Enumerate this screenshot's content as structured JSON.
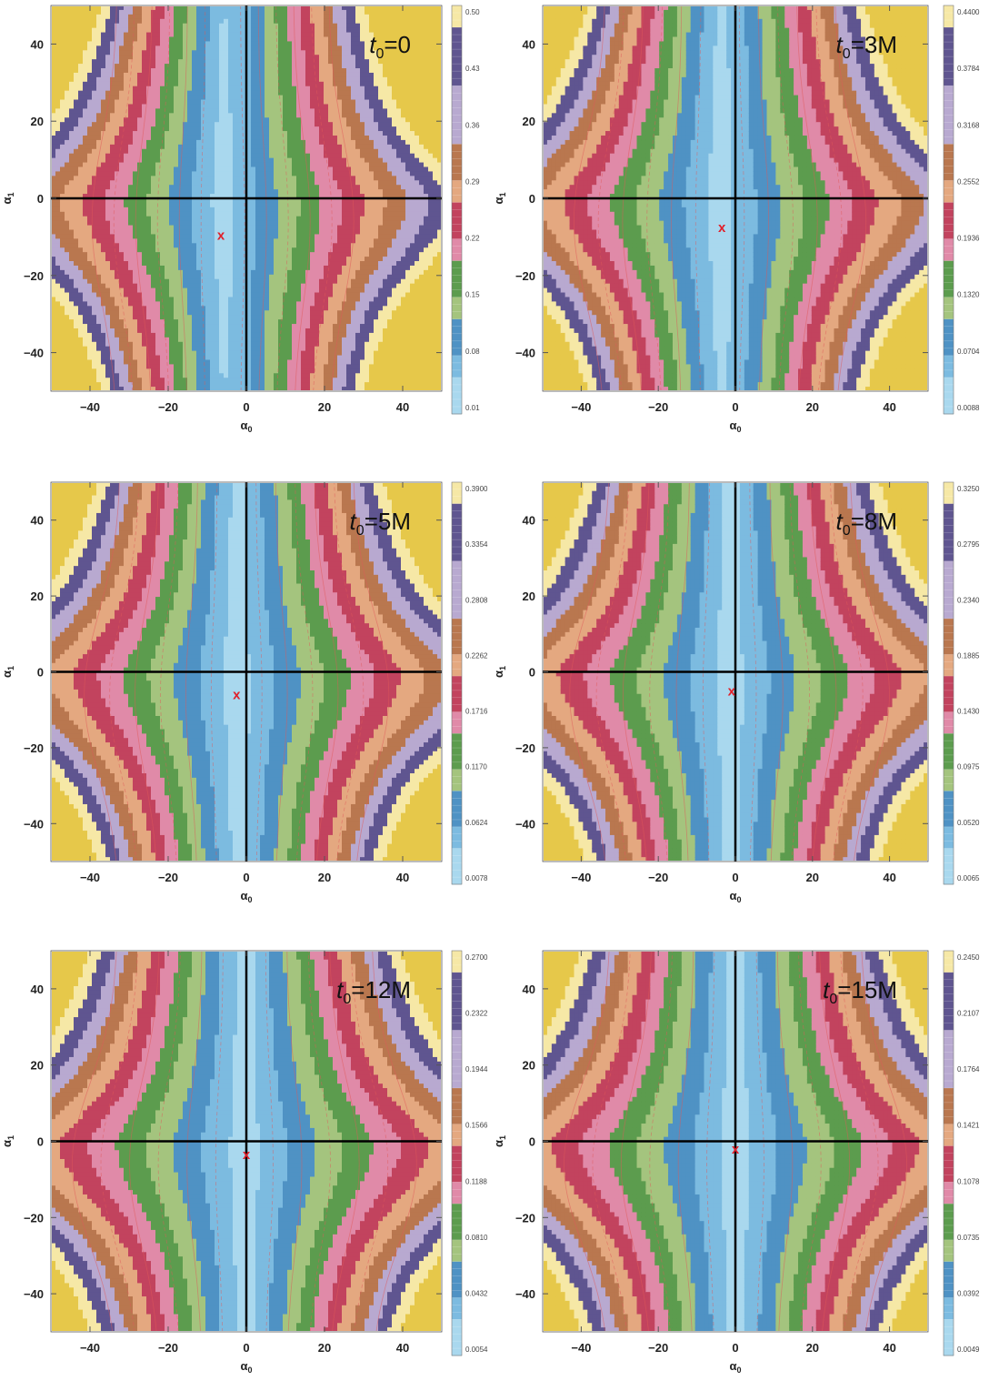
{
  "figure": {
    "x_axis_label": "α",
    "x_axis_sub": "0",
    "y_axis_label": "α",
    "y_axis_sub": "1"
  },
  "chart_data": [
    {
      "type": "heatmap",
      "panel_label": {
        "prefix": "t",
        "sub": "0",
        "value": "=0"
      },
      "xlim": [
        -50,
        50
      ],
      "ylim": [
        -50,
        50
      ],
      "x_ticks": [
        -40,
        -20,
        0,
        20,
        40
      ],
      "y_ticks": [
        -40,
        -20,
        0,
        20,
        40
      ],
      "minimum_marker": {
        "symbol": "x",
        "x": -6.5,
        "y": -9.5
      },
      "colorbar_ticks": [
        "0.01",
        "0.08",
        "0.15",
        "0.22",
        "0.29",
        "0.36",
        "0.43",
        "0.50"
      ],
      "legend_position": "right",
      "field": {
        "centerline_offset": -6,
        "half_width": 10,
        "band_width": 7,
        "bend": 2,
        "corner_gain": 1.15
      }
    },
    {
      "type": "heatmap",
      "panel_label": {
        "prefix": "t",
        "sub": "0",
        "value": "=3M"
      },
      "xlim": [
        -50,
        50
      ],
      "ylim": [
        -50,
        50
      ],
      "x_ticks": [
        -40,
        -20,
        0,
        20,
        40
      ],
      "y_ticks": [
        -40,
        -20,
        0,
        20,
        40
      ],
      "minimum_marker": {
        "symbol": "x",
        "x": -3.5,
        "y": -7.5
      },
      "colorbar_ticks": [
        "0.0088",
        "0.0704",
        "0.1320",
        "0.1936",
        "0.2552",
        "0.3168",
        "0.3784",
        "0.4400"
      ],
      "legend_position": "right",
      "field": {
        "centerline_offset": -4,
        "half_width": 11,
        "band_width": 7,
        "bend": 2.3,
        "corner_gain": 1.1
      }
    },
    {
      "type": "heatmap",
      "panel_label": {
        "prefix": "t",
        "sub": "0",
        "value": "=5M"
      },
      "xlim": [
        -50,
        50
      ],
      "ylim": [
        -50,
        50
      ],
      "x_ticks": [
        -40,
        -20,
        0,
        20,
        40
      ],
      "y_ticks": [
        -40,
        -20,
        0,
        20,
        40
      ],
      "minimum_marker": {
        "symbol": "x",
        "x": -2.5,
        "y": -6.0
      },
      "colorbar_ticks": [
        "0.0078",
        "0.0624",
        "0.1170",
        "0.1716",
        "0.2262",
        "0.2808",
        "0.3354",
        "0.3900"
      ],
      "legend_position": "right",
      "field": {
        "centerline_offset": -2.5,
        "half_width": 11,
        "band_width": 7,
        "bend": 2.6,
        "corner_gain": 1.05
      }
    },
    {
      "type": "heatmap",
      "panel_label": {
        "prefix": "t",
        "sub": "0",
        "value": "=8M"
      },
      "xlim": [
        -50,
        50
      ],
      "ylim": [
        -50,
        50
      ],
      "x_ticks": [
        -40,
        -20,
        0,
        20,
        40
      ],
      "y_ticks": [
        -40,
        -20,
        0,
        20,
        40
      ],
      "minimum_marker": {
        "symbol": "x",
        "x": -1.0,
        "y": -5.0
      },
      "colorbar_ticks": [
        "0.0065",
        "0.0520",
        "0.0975",
        "0.1430",
        "0.1885",
        "0.2340",
        "0.2795",
        "0.3250"
      ],
      "legend_position": "right",
      "field": {
        "centerline_offset": -1.5,
        "half_width": 11.5,
        "band_width": 7,
        "bend": 2.8,
        "corner_gain": 1.0
      }
    },
    {
      "type": "heatmap",
      "panel_label": {
        "prefix": "t",
        "sub": "0",
        "value": "=12M"
      },
      "xlim": [
        -50,
        50
      ],
      "ylim": [
        -50,
        50
      ],
      "x_ticks": [
        -40,
        -20,
        0,
        20,
        40
      ],
      "y_ticks": [
        -40,
        -20,
        0,
        20,
        40
      ],
      "minimum_marker": {
        "symbol": "x",
        "x": 0.0,
        "y": -3.5
      },
      "colorbar_ticks": [
        "0.0054",
        "0.0432",
        "0.0810",
        "0.1188",
        "0.1566",
        "0.1944",
        "0.2322",
        "0.2700"
      ],
      "legend_position": "right",
      "field": {
        "centerline_offset": -0.5,
        "half_width": 12,
        "band_width": 7,
        "bend": 3.0,
        "corner_gain": 0.95
      }
    },
    {
      "type": "heatmap",
      "panel_label": {
        "prefix": "t",
        "sub": "0",
        "value": "=15M"
      },
      "xlim": [
        -50,
        50
      ],
      "ylim": [
        -50,
        50
      ],
      "x_ticks": [
        -40,
        -20,
        0,
        20,
        40
      ],
      "y_ticks": [
        -40,
        -20,
        0,
        20,
        40
      ],
      "minimum_marker": {
        "symbol": "x",
        "x": 0.0,
        "y": -2.0
      },
      "colorbar_ticks": [
        "0.0049",
        "0.0392",
        "0.0735",
        "0.1078",
        "0.1421",
        "0.1764",
        "0.2107",
        "0.2450"
      ],
      "legend_position": "right",
      "field": {
        "centerline_offset": 0,
        "half_width": 12,
        "band_width": 7,
        "bend": 3.1,
        "corner_gain": 0.92
      }
    }
  ],
  "colors": {
    "bands": [
      "#a9d8ee",
      "#7cbbe0",
      "#4f92c4",
      "#a4c47e",
      "#5c9c4e",
      "#e08aa8",
      "#c2435e",
      "#e4a880",
      "#b9774f",
      "#b8a9d0",
      "#5f5590",
      "#f6e8a6",
      "#e6c84a"
    ],
    "axis_line": "#000000",
    "marker": "#e0202a",
    "contour": "#e05a5a"
  }
}
